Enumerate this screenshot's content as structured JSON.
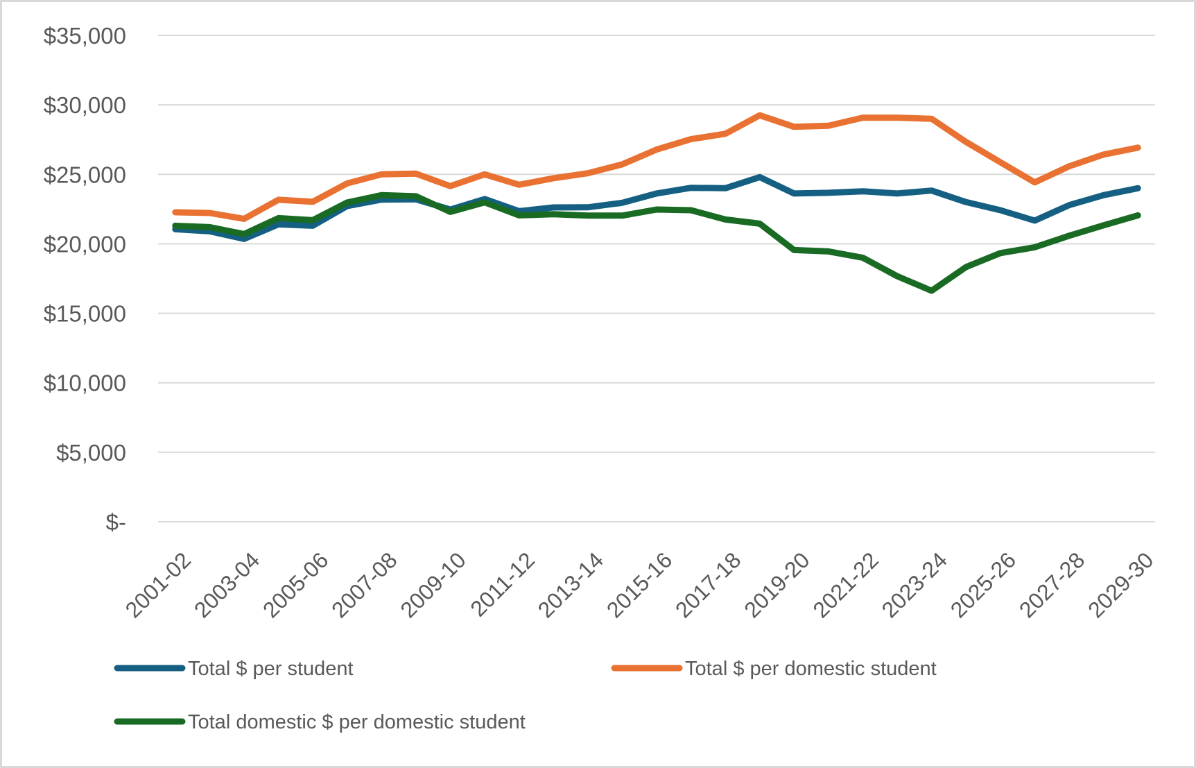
{
  "chart_data": {
    "type": "line",
    "title": "",
    "xlabel": "",
    "ylabel": "",
    "ylim": [
      0,
      35000
    ],
    "yticks": [
      0,
      5000,
      10000,
      15000,
      20000,
      25000,
      30000,
      35000
    ],
    "ytick_labels": [
      "$-",
      "$5,000",
      "$10,000",
      "$15,000",
      "$20,000",
      "$25,000",
      "$30,000",
      "$35,000"
    ],
    "grid": true,
    "legend_position": "bottom",
    "categories": [
      "2001-02",
      "2002-03",
      "2003-04",
      "2004-05",
      "2005-06",
      "2006-07",
      "2007-08",
      "2008-09",
      "2009-10",
      "2010-11",
      "2011-12",
      "2012-13",
      "2013-14",
      "2014-15",
      "2015-16",
      "2016-17",
      "2017-18",
      "2018-19",
      "2019-20",
      "2020-21",
      "2021-22",
      "2022-23",
      "2023-24",
      "2024-25",
      "2025-26",
      "2026-27",
      "2027-28",
      "2028-29",
      "2029-30"
    ],
    "xtick_labels": [
      "2001-02",
      "2003-04",
      "2005-06",
      "2007-08",
      "2009-10",
      "2011-12",
      "2013-14",
      "2015-16",
      "2017-18",
      "2019-20",
      "2021-22",
      "2023-24",
      "2025-26",
      "2027-28",
      "2029-30"
    ],
    "series": [
      {
        "name": "Total $ per student",
        "color": "#156082",
        "values": [
          21050,
          20900,
          20350,
          21400,
          21300,
          22720,
          23180,
          23200,
          22470,
          23220,
          22350,
          22620,
          22630,
          22950,
          23620,
          24030,
          24000,
          24800,
          23620,
          23670,
          23780,
          23620,
          23830,
          23000,
          22420,
          21670,
          22780,
          23500,
          24000
        ]
      },
      {
        "name": "Total $ per domestic student",
        "color": "#E97132",
        "values": [
          22270,
          22220,
          21800,
          23170,
          23020,
          24350,
          25000,
          25050,
          24150,
          25000,
          24250,
          24720,
          25080,
          25720,
          26780,
          27530,
          27920,
          29250,
          28420,
          28500,
          29080,
          29080,
          29000,
          27330,
          25870,
          24420,
          25580,
          26420,
          26920
        ]
      },
      {
        "name": "Total domestic $ per domestic student",
        "color": "#196B24",
        "values": [
          21300,
          21200,
          20700,
          21850,
          21700,
          22970,
          23500,
          23420,
          22300,
          22980,
          22050,
          22130,
          22030,
          22030,
          22470,
          22420,
          21750,
          21450,
          19550,
          19450,
          19000,
          17670,
          16620,
          18330,
          19330,
          19750,
          20580,
          21330,
          22050
        ]
      }
    ]
  },
  "legend": {
    "items": [
      {
        "label": "Total $ per student"
      },
      {
        "label": "Total $ per domestic student"
      },
      {
        "label": "Total domestic $ per domestic student"
      }
    ]
  }
}
